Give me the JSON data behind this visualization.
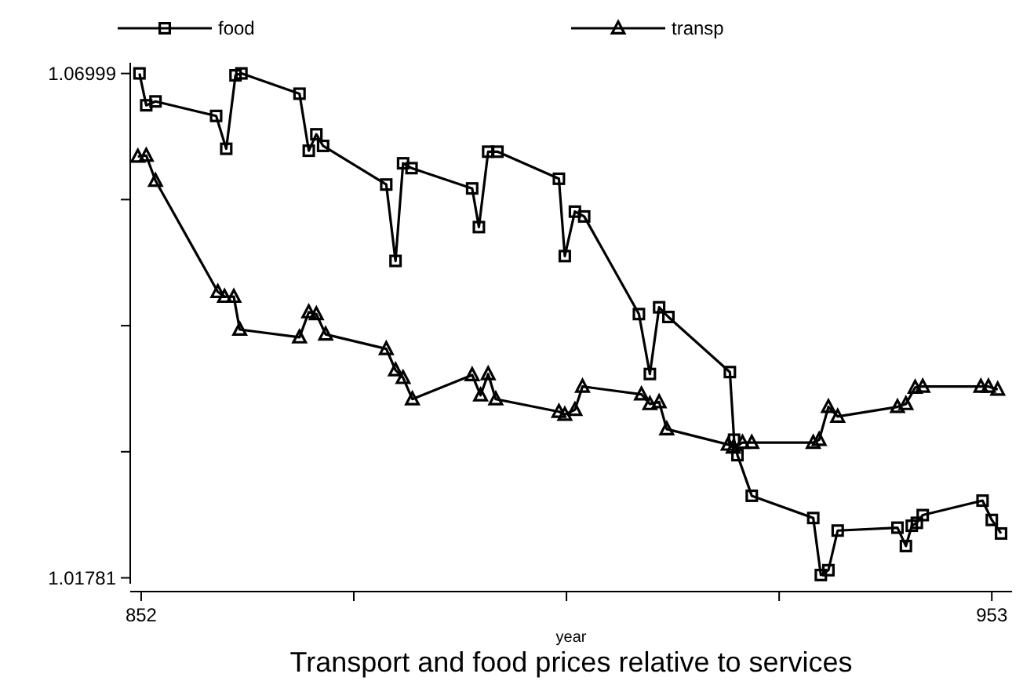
{
  "chart_data": {
    "type": "line",
    "title": "Transport and food prices relative to services",
    "xlabel": "year",
    "xlim": [
      850.7,
      955.4
    ],
    "xticks": [
      852,
      {
        "value": 877.25,
        "label": null
      },
      {
        "value": 902.5,
        "label": null
      },
      {
        "value": 927.75,
        "label": null
      },
      953
    ],
    "ylim": [
      1.0172,
      1.0711
    ],
    "yticks": [
      1.01781,
      {
        "value": 1.030855,
        "label": null
      },
      {
        "value": 1.0439,
        "label": null
      },
      {
        "value": 1.056945,
        "label": null
      },
      1.06999
    ],
    "grid": false,
    "legend": "top",
    "line_style": "solid",
    "series": [
      {
        "name": "food",
        "color": "#000000",
        "marker": "square",
        "x": [
          851.8,
          852.6,
          853.7,
          860.9,
          862.1,
          863.2,
          863.9,
          870.8,
          871.9,
          872.8,
          873.6,
          881.1,
          882.2,
          883.1,
          884.1,
          891.3,
          892.1,
          893.2,
          894.3,
          901.6,
          902.3,
          903.5,
          904.6,
          911.1,
          912.4,
          913.5,
          914.6,
          921.9,
          922.4,
          922.8,
          924.5,
          931.8,
          932.7,
          933.6,
          934.7,
          941.8,
          942.8,
          943.5,
          944.1,
          944.8,
          951.9,
          953.0,
          954.1
        ],
        "values": [
          1.07,
          1.0667,
          1.0671,
          1.0656,
          1.0622,
          1.0698,
          1.07,
          1.0679,
          1.062,
          1.0637,
          1.0625,
          1.0585,
          1.0506,
          1.0607,
          1.0602,
          1.0581,
          1.0541,
          1.0619,
          1.0619,
          1.0591,
          1.0511,
          1.0557,
          1.0552,
          1.0451,
          1.0389,
          1.0458,
          1.0448,
          1.0391,
          1.0321,
          1.0305,
          1.0263,
          1.024,
          1.0181,
          1.0186,
          1.0227,
          1.023,
          1.0211,
          1.0232,
          1.0235,
          1.0243,
          1.0258,
          1.0238,
          1.0224
        ]
      },
      {
        "name": "transp",
        "color": "#000000",
        "marker": "triangle",
        "x": [
          851.6,
          852.6,
          853.7,
          861.1,
          861.9,
          863.0,
          863.7,
          870.8,
          871.9,
          872.8,
          873.9,
          881.1,
          882.2,
          883.1,
          884.2,
          891.3,
          892.3,
          893.2,
          894.1,
          901.6,
          902.3,
          903.5,
          904.4,
          911.4,
          912.4,
          913.5,
          914.4,
          921.7,
          922.3,
          923.4,
          924.5,
          931.8,
          932.5,
          933.6,
          934.7,
          941.8,
          942.8,
          943.9,
          944.8,
          951.7,
          952.6,
          953.7
        ],
        "values": [
          1.0614,
          1.0615,
          1.0589,
          1.0474,
          1.0469,
          1.0469,
          1.0435,
          1.0427,
          1.0453,
          1.0451,
          1.043,
          1.0415,
          1.0393,
          1.0385,
          1.0363,
          1.0388,
          1.0367,
          1.0389,
          1.0363,
          1.035,
          1.0347,
          1.0352,
          1.0376,
          1.0368,
          1.0358,
          1.036,
          1.0332,
          1.0316,
          1.0313,
          1.0318,
          1.0318,
          1.0318,
          1.0321,
          1.0355,
          1.0345,
          1.0355,
          1.0358,
          1.0375,
          1.0376,
          1.0376,
          1.0376,
          1.0373
        ]
      }
    ]
  }
}
